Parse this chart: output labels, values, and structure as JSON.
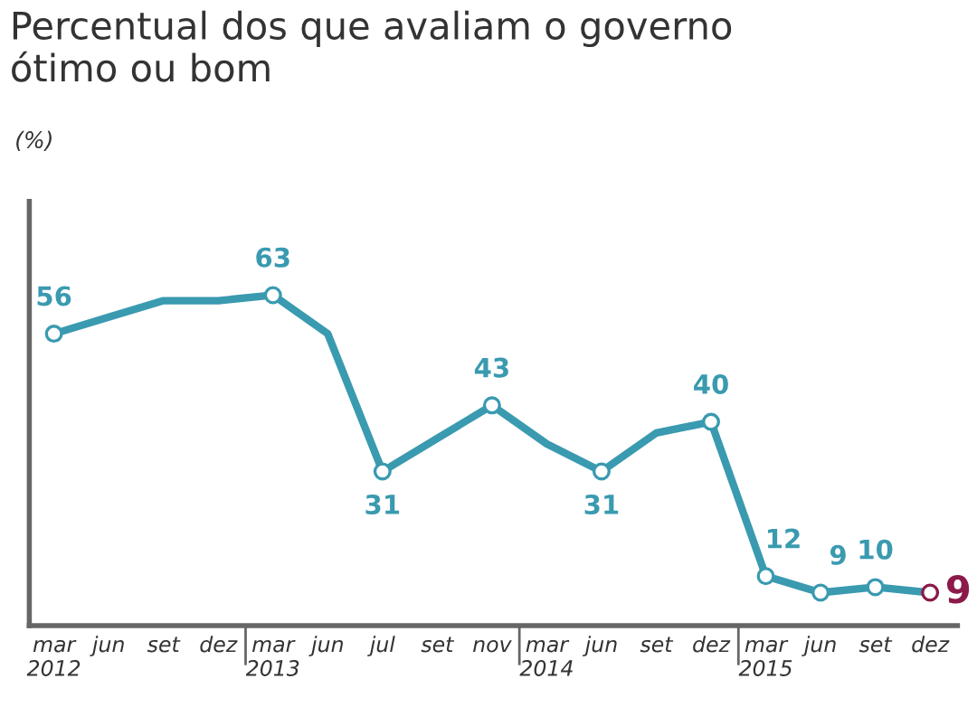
{
  "chart_data": {
    "type": "line",
    "title": "Percentual dos que avaliam o governo\nótimo ou bom",
    "subtitle": "(%)",
    "categories": [
      "mar\n2012",
      "jun",
      "set",
      "dez",
      "mar\n2013",
      "jun",
      "jul",
      "set",
      "nov",
      "mar\n2014",
      "jun",
      "set",
      "dez",
      "mar\n2015",
      "jun",
      "set",
      "dez"
    ],
    "series": [
      {
        "color": "#3a9ab0",
        "values": [
          56,
          59,
          62,
          62,
          63,
          56,
          31,
          37,
          43,
          36,
          31,
          38,
          40,
          12,
          9,
          10,
          9
        ],
        "value_labels": [
          "56",
          null,
          null,
          null,
          "63",
          null,
          "31",
          null,
          "43",
          null,
          "31",
          null,
          "40",
          "12",
          "9",
          "10",
          "9"
        ],
        "colors": [
          "#3a9ab0",
          "#3a9ab0",
          "#3a9ab0",
          "#3a9ab0",
          "#3a9ab0",
          "#3a9ab0",
          "#3a9ab0",
          "#3a9ab0",
          "#3a9ab0",
          "#3a9ab0",
          "#3a9ab0",
          "#3a9ab0",
          "#3a9ab0",
          "#3a9ab0",
          "#3a9ab0",
          "#3a9ab0",
          "#8b1a4a"
        ]
      }
    ],
    "ylim": [
      3,
      80
    ],
    "tick_labels": "x",
    "grid": false,
    "marker": "circle",
    "line_style": "solid"
  }
}
